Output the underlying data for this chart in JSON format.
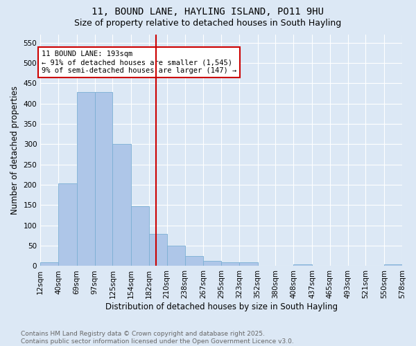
{
  "title1": "11, BOUND LANE, HAYLING ISLAND, PO11 9HU",
  "title2": "Size of property relative to detached houses in South Hayling",
  "xlabel": "Distribution of detached houses by size in South Hayling",
  "ylabel": "Number of detached properties",
  "bin_edges": [
    12,
    40,
    69,
    97,
    125,
    154,
    182,
    210,
    238,
    267,
    295,
    323,
    352,
    380,
    408,
    437,
    465,
    493,
    521,
    550,
    578
  ],
  "bar_heights": [
    10,
    204,
    428,
    428,
    301,
    147,
    80,
    50,
    25,
    13,
    10,
    9,
    0,
    0,
    4,
    0,
    0,
    0,
    0,
    4
  ],
  "bar_color": "#aec6e8",
  "bar_edge_color": "#7bafd4",
  "vline_x": 193,
  "vline_color": "#cc0000",
  "annotation_text": "11 BOUND LANE: 193sqm\n← 91% of detached houses are smaller (1,545)\n9% of semi-detached houses are larger (147) →",
  "annotation_box_color": "#ffffff",
  "annotation_box_edge": "#cc0000",
  "yticks": [
    0,
    50,
    100,
    150,
    200,
    250,
    300,
    350,
    400,
    450,
    500,
    550
  ],
  "xtick_labels": [
    "12sqm",
    "40sqm",
    "69sqm",
    "97sqm",
    "125sqm",
    "154sqm",
    "182sqm",
    "210sqm",
    "238sqm",
    "267sqm",
    "295sqm",
    "323sqm",
    "352sqm",
    "380sqm",
    "408sqm",
    "437sqm",
    "465sqm",
    "493sqm",
    "521sqm",
    "550sqm",
    "578sqm"
  ],
  "ylim": [
    0,
    570
  ],
  "background_color": "#dce8f5",
  "footer_text": "Contains HM Land Registry data © Crown copyright and database right 2025.\nContains public sector information licensed under the Open Government Licence v3.0.",
  "grid_color": "#ffffff",
  "title_fontsize": 10,
  "subtitle_fontsize": 9,
  "axis_label_fontsize": 8.5,
  "tick_fontsize": 7.5,
  "footer_fontsize": 6.5,
  "annotation_fontsize": 7.5
}
